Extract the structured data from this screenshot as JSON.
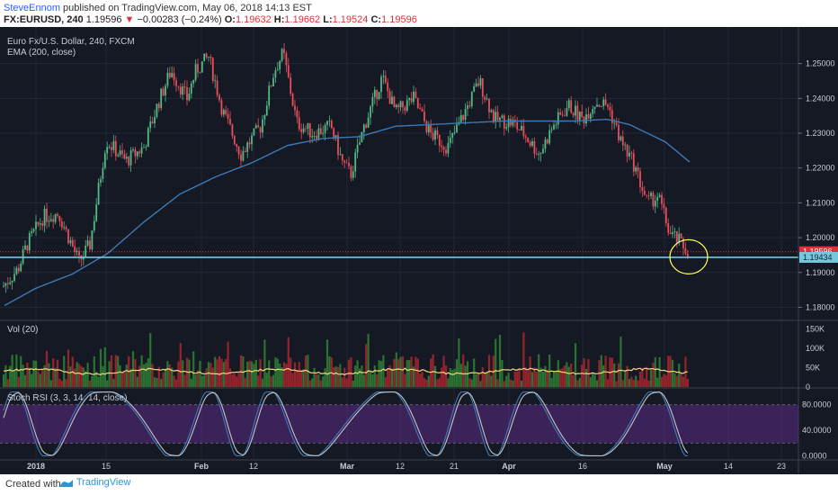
{
  "header": {
    "author": "SteveEnnom",
    "published": "published on TradingView.com, May 06, 2018 14:13 EST",
    "symbol": "FX:EURUSD, 240",
    "last": "1.19596",
    "change": "−0.00283 (−0.24%)",
    "o_label": "O:",
    "o": "1.19632",
    "h_label": "H:",
    "h": "1.19662",
    "l_label": "L:",
    "l": "1.19524",
    "c_label": "C:",
    "c": "1.19596"
  },
  "legend": {
    "title": "Euro Fx/U.S. Dollar, 240, FXCM",
    "ema": "EMA (200, close)",
    "vol": "Vol (20)",
    "rsi": "Stoch RSI (3, 3, 14, 14, close)"
  },
  "footer": {
    "created": "Created with",
    "brand": "TradingView"
  },
  "colors": {
    "background": "#151924",
    "up": "#53b987",
    "down": "#eb4d5c",
    "ema": "#3d7ab5",
    "support": "#74c7dd",
    "last_price": "#e0303a",
    "stoch_k": "#3d7ab5",
    "stoch_d": "#c4c4c4",
    "rsi_band": "#5b2c86",
    "vol_ma": "#f6d57b",
    "circle": "#ffff55"
  },
  "chart_data": [
    {
      "type": "candlestick",
      "title": "Euro Fx/U.S. Dollar, 240, FXCM",
      "x_ticks": [
        "2018",
        "15",
        "Feb",
        "12",
        "Mar",
        "12",
        "21",
        "Apr",
        "16",
        "May",
        "14",
        "23"
      ],
      "y_ticks": [
        "1.25000",
        "1.24000",
        "1.23000",
        "1.22000",
        "1.21000",
        "1.20000",
        "1.19000",
        "1.18000"
      ],
      "ylim": [
        1.1765,
        1.2605
      ],
      "path_anchors": [
        [
          0,
          1.185
        ],
        [
          20,
          1.191
        ],
        [
          30,
          1.198
        ],
        [
          48,
          1.206
        ],
        [
          65,
          1.207
        ],
        [
          88,
          1.193
        ],
        [
          100,
          1.198
        ],
        [
          118,
          1.228
        ],
        [
          140,
          1.222
        ],
        [
          160,
          1.226
        ],
        [
          175,
          1.238
        ],
        [
          190,
          1.248
        ],
        [
          208,
          1.24
        ],
        [
          218,
          1.248
        ],
        [
          232,
          1.252
        ],
        [
          248,
          1.236
        ],
        [
          268,
          1.224
        ],
        [
          290,
          1.232
        ],
        [
          305,
          1.248
        ],
        [
          315,
          1.253
        ],
        [
          330,
          1.233
        ],
        [
          348,
          1.23
        ],
        [
          368,
          1.232
        ],
        [
          380,
          1.222
        ],
        [
          390,
          1.218
        ],
        [
          405,
          1.232
        ],
        [
          425,
          1.246
        ],
        [
          440,
          1.236
        ],
        [
          460,
          1.24
        ],
        [
          478,
          1.23
        ],
        [
          498,
          1.226
        ],
        [
          515,
          1.235
        ],
        [
          533,
          1.245
        ],
        [
          550,
          1.234
        ],
        [
          570,
          1.233
        ],
        [
          582,
          1.23
        ],
        [
          600,
          1.224
        ],
        [
          615,
          1.232
        ],
        [
          632,
          1.238
        ],
        [
          648,
          1.234
        ],
        [
          662,
          1.239
        ],
        [
          676,
          1.238
        ],
        [
          690,
          1.228
        ],
        [
          705,
          1.221
        ],
        [
          720,
          1.21
        ],
        [
          732,
          1.212
        ],
        [
          745,
          1.201
        ],
        [
          755,
          1.199
        ],
        [
          765,
          1.196
        ]
      ],
      "ema_anchors": [
        [
          5,
          1.1805
        ],
        [
          40,
          1.1855
        ],
        [
          80,
          1.1895
        ],
        [
          120,
          1.1955
        ],
        [
          160,
          1.2045
        ],
        [
          200,
          1.2125
        ],
        [
          240,
          1.2175
        ],
        [
          280,
          1.2215
        ],
        [
          320,
          1.2265
        ],
        [
          360,
          1.2285
        ],
        [
          400,
          1.229
        ],
        [
          440,
          1.232
        ],
        [
          480,
          1.2325
        ],
        [
          520,
          1.233
        ],
        [
          560,
          1.2335
        ],
        [
          600,
          1.2335
        ],
        [
          640,
          1.2335
        ],
        [
          675,
          1.234
        ],
        [
          700,
          1.2325
        ],
        [
          740,
          1.2275
        ],
        [
          768,
          1.2215
        ]
      ],
      "support_level": 1.19434,
      "last_price": 1.19596,
      "support_label": "1.19434",
      "last_price_label": "1.19596"
    },
    {
      "type": "bar",
      "title": "Vol (20)",
      "y_ticks": [
        "150K",
        "100K",
        "50K",
        "0"
      ],
      "ylim": [
        0,
        160000
      ],
      "ma_level": 40000
    },
    {
      "type": "line",
      "title": "Stoch RSI (3, 3, 14, 14, close)",
      "y_ticks": [
        "80.0000",
        "40.0000",
        "0.0000"
      ],
      "ylim": [
        -5,
        105
      ],
      "band": [
        20,
        80
      ],
      "series": [
        {
          "color": "#3d7ab5"
        },
        {
          "color": "#c4c4c4"
        }
      ]
    }
  ]
}
